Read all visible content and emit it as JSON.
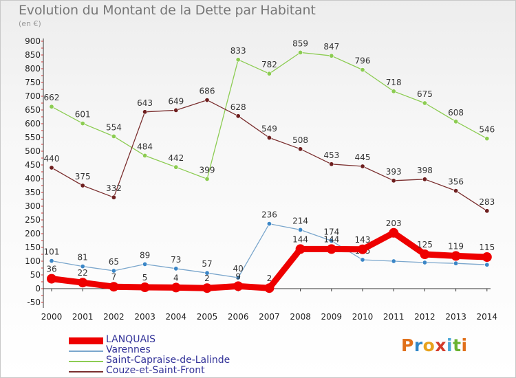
{
  "title": "Evolution du Montant de la Dette par Habitant",
  "unit_label": "(en €)",
  "logo_text": "Proxiti",
  "chart_data": {
    "type": "line",
    "title": "Evolution du Montant de la Dette par Habitant",
    "ylabel": "(en €)",
    "xlabel": "",
    "x": [
      "2000",
      "2001",
      "2002",
      "2003",
      "2004",
      "2005",
      "2006",
      "2007",
      "2008",
      "2009",
      "2010",
      "2011",
      "2012",
      "2013",
      "2014"
    ],
    "ylim": [
      -50,
      900
    ],
    "yticks": [
      -50,
      0,
      50,
      100,
      150,
      200,
      250,
      300,
      350,
      400,
      450,
      500,
      550,
      600,
      650,
      700,
      750,
      800,
      850,
      900
    ],
    "grid": false,
    "legend_position": "bottom",
    "series": [
      {
        "name": "Saint-Capraise-de-Lalinde",
        "color": "#8ccc52",
        "point_color": "#8ccc52",
        "values": [
          662,
          601,
          554,
          484,
          442,
          399,
          833,
          782,
          859,
          847,
          796,
          718,
          675,
          608,
          546
        ],
        "labels": [
          "662",
          "601",
          "554",
          "484",
          "442",
          "399",
          "833",
          "782",
          "859",
          "847",
          "796",
          "718",
          "675",
          "608",
          "546"
        ]
      },
      {
        "name": "Couze-et-Saint-Front",
        "color": "#7a2e2e",
        "point_color": "#6e1f1f",
        "values": [
          440,
          375,
          332,
          643,
          649,
          686,
          628,
          549,
          508,
          453,
          445,
          393,
          398,
          356,
          283
        ],
        "labels": [
          "440",
          "375",
          "332",
          "643",
          "649",
          "686",
          "628",
          "549",
          "508",
          "453",
          "445",
          "393",
          "398",
          "356",
          "283"
        ]
      },
      {
        "name": "Varennes",
        "color": "#7aa6cc",
        "point_color": "#3b86c6",
        "values": [
          101,
          81,
          65,
          89,
          73,
          57,
          40,
          236,
          214,
          174,
          105,
          100,
          95,
          92,
          87
        ],
        "labels": [
          "101",
          "81",
          "65",
          "89",
          "73",
          "57",
          "40",
          "236",
          "214",
          "174",
          "105",
          "",
          "",
          "",
          ""
        ]
      },
      {
        "name": "LANQUAIS",
        "color": "#ee0000",
        "point_color": "#ee0000",
        "values": [
          36,
          22,
          7,
          5,
          4,
          2,
          9,
          2,
          144,
          144,
          143,
          203,
          125,
          119,
          115
        ],
        "labels": [
          "36",
          "22",
          "7",
          "5",
          "4",
          "2",
          "9",
          "2",
          "144",
          "144",
          "143",
          "203",
          "125",
          "119",
          "115"
        ]
      }
    ],
    "legend": [
      {
        "name": "LANQUAIS",
        "color": "#ee0000",
        "thickness": 10
      },
      {
        "name": "Varennes",
        "color": "#7aa6cc",
        "thickness": 2
      },
      {
        "name": "Saint-Capraise-de-Lalinde",
        "color": "#8ccc52",
        "thickness": 2
      },
      {
        "name": "Couze-et-Saint-Front",
        "color": "#7a2e2e",
        "thickness": 2
      }
    ]
  }
}
